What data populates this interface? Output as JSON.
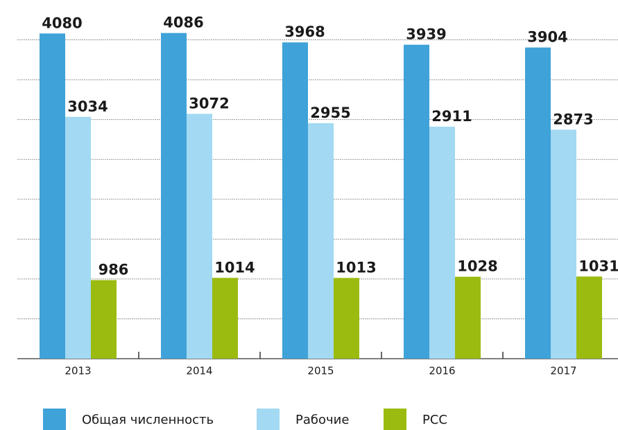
{
  "chart_data": {
    "type": "bar",
    "categories": [
      "2013",
      "2014",
      "2015",
      "2016",
      "2017"
    ],
    "series": [
      {
        "name": "Общая численность",
        "color": "#3fa2d8",
        "values": [
          4080,
          4086,
          3968,
          3939,
          3904
        ]
      },
      {
        "name": "Рабочие",
        "color": "#a3d9f2",
        "values": [
          3034,
          3072,
          2955,
          2911,
          2873
        ]
      },
      {
        "name": "РСС",
        "color": "#9bbb10",
        "values": [
          986,
          1014,
          1013,
          1028,
          1031
        ]
      }
    ],
    "ylim": [
      0,
      4500
    ],
    "yticks": [
      500,
      1000,
      1500,
      2000,
      2500,
      3000,
      3500,
      4000
    ],
    "grid": true
  }
}
